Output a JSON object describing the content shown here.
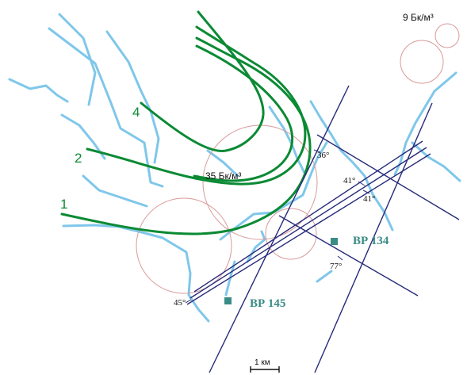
{
  "labels": {
    "dose_top_right": "9 Бк/м³",
    "dose_center": "35 Бк/м³"
  },
  "contours": [
    "1",
    "2",
    "4"
  ],
  "angles": [
    "36°",
    "41°",
    "41°",
    "77°",
    "45°"
  ],
  "boreholes": [
    "ВР 134",
    "ВР 145"
  ],
  "scale_bar": "1 км",
  "colors": {
    "river": "#7fc7ea",
    "contour": "#0b8a34",
    "circle": "#d99a9a",
    "line": "#262a7a",
    "borehole": "#3a8c86"
  }
}
